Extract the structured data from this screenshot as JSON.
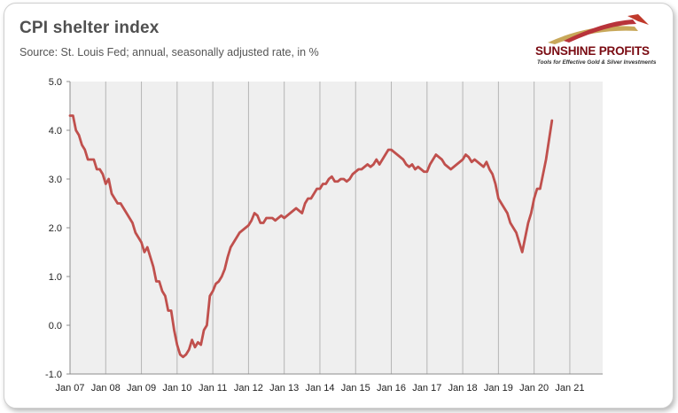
{
  "header": {
    "title": "CPI shelter index",
    "subtitle": "Source: St. Louis Fed; annual, seasonally adjusted rate, in %"
  },
  "logo": {
    "name": "SUNSHINE PROFITS",
    "tagline": "Tools for Effective Gold & Silver Investments",
    "colors": {
      "dark": "#7a0b12",
      "gold": "#c8a85a",
      "red": "#c0392b"
    }
  },
  "chart_data": {
    "type": "line",
    "title": "CPI shelter index",
    "subtitle": "Source: St. Louis Fed; annual, seasonally adjusted rate, in %",
    "xlabel": "",
    "ylabel": "",
    "ylim": [
      -1.0,
      5.0
    ],
    "ytick_labels": [
      "5.0",
      "4.0",
      "3.0",
      "2.0",
      "1.0",
      "0.0",
      "-1.0"
    ],
    "ytick_values": [
      5,
      4,
      3,
      2,
      1,
      0,
      -1
    ],
    "xlim": [
      2007.0,
      2021.92
    ],
    "xtick_labels": [
      "Jan 07",
      "Jan 08",
      "Jan 09",
      "Jan 10",
      "Jan 11",
      "Jan 12",
      "Jan 13",
      "Jan 14",
      "Jan 15",
      "Jan 16",
      "Jan 17",
      "Jan 18",
      "Jan 19",
      "Jan 20",
      "Jan 21"
    ],
    "xtick_values": [
      2007,
      2008,
      2009,
      2010,
      2011,
      2012,
      2013,
      2014,
      2015,
      2016,
      2017,
      2018,
      2019,
      2020,
      2021
    ],
    "grid": "vertical",
    "plot_background": "#efefef",
    "series": [
      {
        "name": "CPI shelter index",
        "color": "#c0504d",
        "start": "Jan 2007",
        "frequency": "monthly",
        "values": [
          4.3,
          4.3,
          4.0,
          3.9,
          3.7,
          3.6,
          3.4,
          3.4,
          3.4,
          3.2,
          3.2,
          3.1,
          2.9,
          3.0,
          2.7,
          2.6,
          2.5,
          2.5,
          2.4,
          2.3,
          2.2,
          2.1,
          1.9,
          1.8,
          1.7,
          1.5,
          1.6,
          1.4,
          1.2,
          0.9,
          0.9,
          0.7,
          0.6,
          0.3,
          0.3,
          -0.1,
          -0.4,
          -0.6,
          -0.65,
          -0.6,
          -0.5,
          -0.3,
          -0.45,
          -0.35,
          -0.4,
          -0.1,
          0.0,
          0.6,
          0.7,
          0.85,
          0.9,
          1.0,
          1.15,
          1.4,
          1.6,
          1.7,
          1.8,
          1.9,
          1.95,
          2.0,
          2.05,
          2.15,
          2.3,
          2.25,
          2.1,
          2.1,
          2.2,
          2.2,
          2.2,
          2.15,
          2.2,
          2.25,
          2.2,
          2.25,
          2.3,
          2.35,
          2.4,
          2.35,
          2.3,
          2.5,
          2.6,
          2.6,
          2.7,
          2.8,
          2.8,
          2.9,
          2.9,
          3.0,
          3.05,
          2.95,
          2.95,
          3.0,
          3.0,
          2.95,
          3.0,
          3.1,
          3.15,
          3.2,
          3.2,
          3.25,
          3.3,
          3.25,
          3.3,
          3.4,
          3.3,
          3.4,
          3.5,
          3.6,
          3.6,
          3.55,
          3.5,
          3.45,
          3.4,
          3.3,
          3.25,
          3.3,
          3.2,
          3.25,
          3.2,
          3.15,
          3.15,
          3.3,
          3.4,
          3.5,
          3.45,
          3.4,
          3.3,
          3.25,
          3.2,
          3.25,
          3.3,
          3.35,
          3.4,
          3.5,
          3.45,
          3.35,
          3.4,
          3.35,
          3.3,
          3.25,
          3.35,
          3.2,
          3.1,
          2.9,
          2.6,
          2.5,
          2.4,
          2.3,
          2.1,
          2.0,
          1.9,
          1.7,
          1.5,
          1.8,
          2.1,
          2.3,
          2.6,
          2.8,
          2.8,
          3.1,
          3.4,
          3.8,
          4.2
        ]
      }
    ]
  }
}
